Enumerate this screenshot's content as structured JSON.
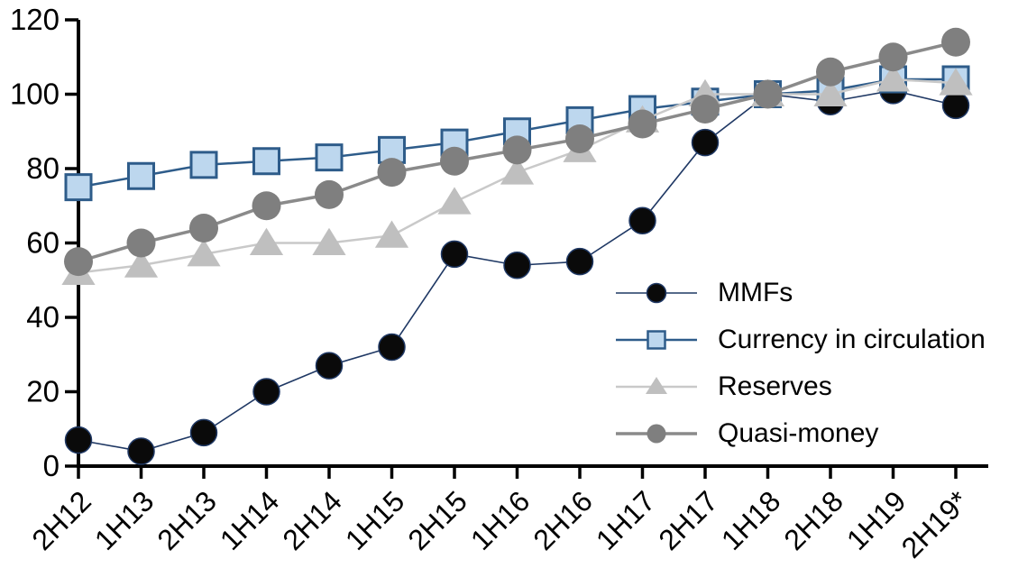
{
  "chart_data": {
    "type": "line",
    "title": "",
    "xlabel": "",
    "ylabel": "",
    "categories": [
      "2H12",
      "1H13",
      "2H13",
      "1H14",
      "2H14",
      "1H15",
      "2H15",
      "1H16",
      "2H16",
      "1H17",
      "2H17",
      "1H18",
      "2H18",
      "1H19",
      "2H19*"
    ],
    "series": [
      {
        "name": "MMFs",
        "marker": "circle",
        "line_color": "#1f3864",
        "line_width": 1.6,
        "marker_fill": "#0a0a0a",
        "marker_stroke": "#1f3864",
        "marker_stroke_width": 1.5,
        "marker_size": 29,
        "values": [
          7,
          4,
          9,
          20,
          27,
          32,
          57,
          54,
          55,
          66,
          87,
          100,
          98,
          101,
          97
        ]
      },
      {
        "name": "Currency in circulation",
        "marker": "square",
        "line_color": "#2e5c8a",
        "line_width": 2.5,
        "marker_fill": "#bdd7ee",
        "marker_stroke": "#2e5c8a",
        "marker_stroke_width": 3,
        "marker_size": 28,
        "values": [
          75,
          78,
          81,
          82,
          83,
          85,
          87,
          90,
          93,
          96,
          98,
          100,
          101,
          104,
          104
        ]
      },
      {
        "name": "Reserves",
        "marker": "triangle",
        "line_color": "#c9c9c9",
        "line_width": 2.5,
        "marker_fill": "#bfbfbf",
        "marker_stroke": "#bfbfbf",
        "marker_stroke_width": 0,
        "marker_size": 30,
        "values": [
          52,
          54,
          57,
          60,
          60,
          62,
          71,
          79,
          85,
          93,
          100,
          100,
          100,
          104,
          103
        ]
      },
      {
        "name": "Quasi-money",
        "marker": "circle",
        "line_color": "#8a8a8a",
        "line_width": 3.5,
        "marker_fill": "#7f7f7f",
        "marker_stroke": "#7f7f7f",
        "marker_stroke_width": 0,
        "marker_size": 32,
        "values": [
          55,
          60,
          64,
          70,
          73,
          79,
          82,
          85,
          88,
          92,
          96,
          100,
          106,
          110,
          114
        ]
      }
    ],
    "ylim": [
      0,
      120
    ],
    "yticks": [
      0,
      20,
      40,
      60,
      80,
      100,
      120
    ],
    "grid": "off",
    "legend_position": "inside-right",
    "axis_color": "#000000",
    "tick_label_color": "#000000"
  }
}
